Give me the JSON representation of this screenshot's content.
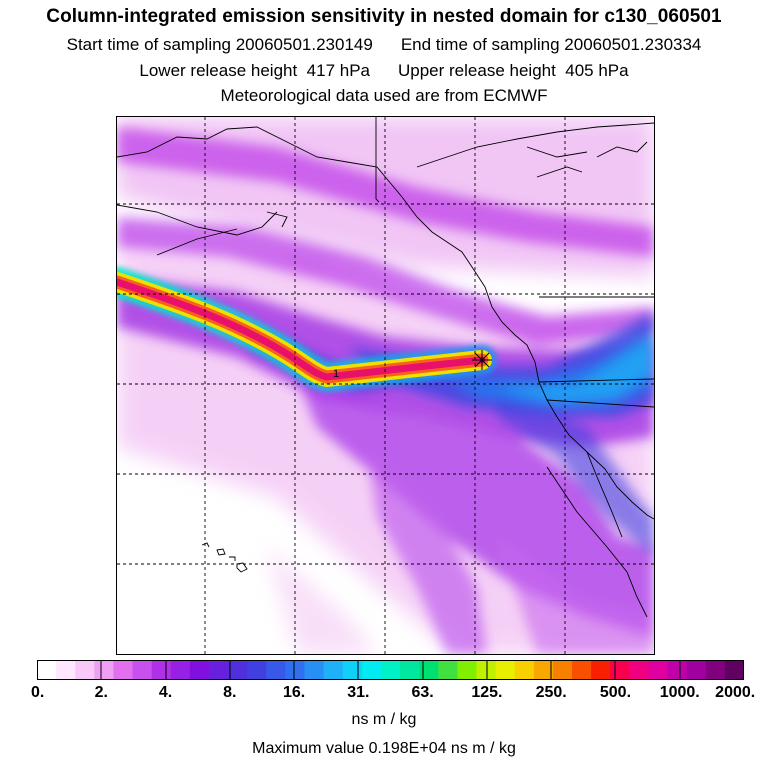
{
  "header": {
    "title": "Column-integrated emission sensitivity in nested domain for c130_060501",
    "start_label": "Start time of sampling 20060501.230149",
    "end_label": "End time of sampling 20060501.230334",
    "lower_label": "Lower release height  417 hPa",
    "upper_label": "Upper release height  405 hPa",
    "met_label": "Meteorological data used are from ECMWF"
  },
  "map": {
    "release_marker_label": "1"
  },
  "colorbar": {
    "tick_labels": [
      "0.",
      "2.",
      "4.",
      "8.",
      "16.",
      "31.",
      "63.",
      "125.",
      "250.",
      "500.",
      "1000.",
      "2000."
    ],
    "colors": [
      "#ffffff",
      "#ffe8ff",
      "#f8c8f8",
      "#f0a0f4",
      "#e070ee",
      "#c850ec",
      "#b030e8",
      "#9820e4",
      "#8010e0",
      "#6820dc",
      "#5030dc",
      "#4040e0",
      "#3858e8",
      "#3070f0",
      "#2890f4",
      "#20b0f8",
      "#10d0f8",
      "#00ecf0",
      "#00f0c8",
      "#00e8a0",
      "#00e070",
      "#40e040",
      "#80f000",
      "#c0f000",
      "#e8f000",
      "#f8d000",
      "#f8a800",
      "#f88000",
      "#f85000",
      "#f82000",
      "#f80050",
      "#f00080",
      "#e000a0",
      "#c000a8",
      "#a000a0",
      "#800080",
      "#600060"
    ],
    "units": "ns m / kg",
    "max_value": "Maximum value  0.198E+04 ns m / kg"
  }
}
